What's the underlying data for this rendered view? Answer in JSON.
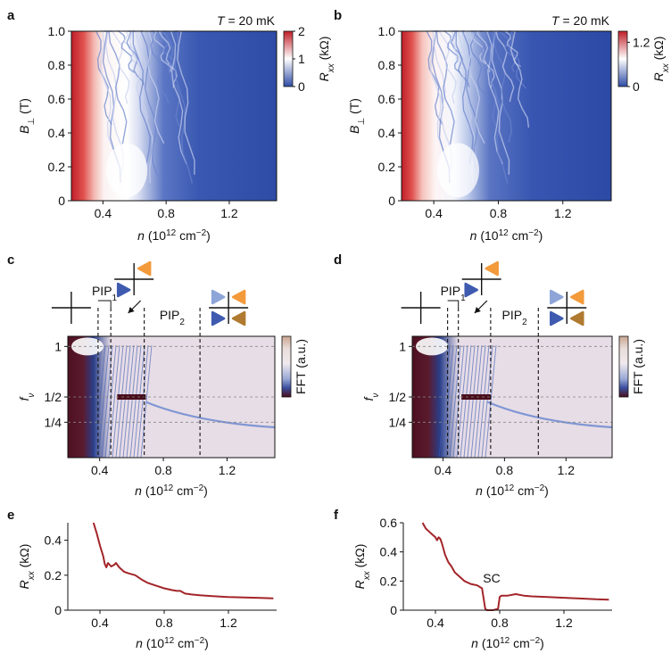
{
  "figure": {
    "panel_labels": [
      "a",
      "b",
      "c",
      "d",
      "e",
      "f"
    ],
    "colors": {
      "red": "#d8262f",
      "blue": "#2f4fa8",
      "dark_red_trace": "#a3252a",
      "fft_dark": "#4a0d1a",
      "fft_light": "#e7dde6",
      "tri_orange": "#f39a3b",
      "tri_blue": "#3f5bb0",
      "tri_lightblue": "#8ea5d8",
      "tri_brown": "#b07a30"
    },
    "icons": [
      "cross-icon",
      "cross-with-triangles-icon",
      "triangle-icon"
    ]
  },
  "chart_data": [
    {
      "panel": "a",
      "type": "heatmap",
      "title": "T = 20 mK",
      "xlabel": "n (10^12 cm^-2)",
      "xlabel_parts": {
        "n": "n",
        "units": "(10",
        "exp": "12",
        "unit2": " cm",
        "exp2": "−2",
        "close": ")"
      },
      "ylabel": "B⊥ (T)",
      "xlim": [
        0.2,
        1.5
      ],
      "ylim": [
        0,
        1.0
      ],
      "xticks": [
        "0.4",
        "0.8",
        "1.2"
      ],
      "xtick_values": [
        0.4,
        0.8,
        1.2
      ],
      "yticks": [
        "0",
        "0.2",
        "0.4",
        "0.6",
        "0.8",
        "1.0"
      ],
      "ytick_values": [
        0,
        0.2,
        0.4,
        0.6,
        0.8,
        1.0
      ],
      "colorbar": {
        "label": "Rxx (kΩ)",
        "ticks": [
          "2",
          "1",
          "0"
        ],
        "tick_values": [
          2,
          1,
          0
        ],
        "range": [
          0,
          2
        ]
      }
    },
    {
      "panel": "b",
      "type": "heatmap",
      "title": "T = 20 mK",
      "xlabel": "n (10^12 cm^-2)",
      "ylabel": "B⊥ (T)",
      "xlim": [
        0.2,
        1.5
      ],
      "ylim": [
        0,
        1.0
      ],
      "xticks": [
        "0.4",
        "0.8",
        "1.2"
      ],
      "xtick_values": [
        0.4,
        0.8,
        1.2
      ],
      "yticks": [
        "0",
        "0.2",
        "0.4",
        "0.6",
        "0.8",
        "1.0"
      ],
      "ytick_values": [
        0,
        0.2,
        0.4,
        0.6,
        0.8,
        1.0
      ],
      "colorbar": {
        "label": "Rxx (kΩ)",
        "ticks": [
          "1.2",
          "0"
        ],
        "tick_values": [
          1.2,
          0
        ],
        "range": [
          0,
          1.5
        ]
      }
    },
    {
      "panel": "c",
      "type": "heatmap",
      "xlabel": "n (10^12 cm^-2)",
      "ylabel": "fν",
      "xlim": [
        0.2,
        1.5
      ],
      "xticks": [
        "0.4",
        "0.8",
        "1.2"
      ],
      "xtick_values": [
        0.4,
        0.8,
        1.2
      ],
      "yticks": [
        "1",
        "1/2",
        "1/4"
      ],
      "ytick_values": [
        1,
        0.5,
        0.25
      ],
      "ylim": [
        -0.1,
        1.1
      ],
      "colorbar": {
        "label": "FFT (a.u.)"
      },
      "annotations": [
        "PIP1",
        "PIP2"
      ],
      "phase_boundaries_n": [
        0.39,
        0.47,
        0.68,
        1.03
      ],
      "bright_feature": {
        "n_range": [
          0.51,
          0.69
        ],
        "f": 0.5
      }
    },
    {
      "panel": "d",
      "type": "heatmap",
      "xlabel": "n (10^12 cm^-2)",
      "ylabel": "fν",
      "xlim": [
        0.2,
        1.5
      ],
      "xticks": [
        "0.4",
        "0.8",
        "1.2"
      ],
      "xtick_values": [
        0.4,
        0.8,
        1.2
      ],
      "yticks": [
        "1",
        "1/2",
        "1/4"
      ],
      "ytick_values": [
        1,
        0.5,
        0.25
      ],
      "ylim": [
        -0.1,
        1.1
      ],
      "colorbar": {
        "label": "FFT (a.u.)"
      },
      "annotations": [
        "PIP1",
        "PIP2"
      ],
      "phase_boundaries_n": [
        0.43,
        0.5,
        0.71,
        1.02
      ],
      "bright_feature": {
        "n_range": [
          0.52,
          0.71
        ],
        "f": 0.5
      }
    },
    {
      "panel": "e",
      "type": "line",
      "xlabel": "n (10^12 cm^-2)",
      "ylabel": "Rxx (kΩ)",
      "xlim": [
        0.2,
        1.5
      ],
      "ylim": [
        0,
        0.5
      ],
      "xticks": [
        "0.4",
        "0.8",
        "1.2"
      ],
      "xtick_values": [
        0.4,
        0.8,
        1.2
      ],
      "yticks": [
        "0",
        "0.2",
        "0.4"
      ],
      "ytick_values": [
        0,
        0.2,
        0.4
      ],
      "series": [
        {
          "name": "Rxx",
          "x": [
            0.36,
            0.38,
            0.4,
            0.42,
            0.43,
            0.44,
            0.45,
            0.47,
            0.49,
            0.5,
            0.52,
            0.55,
            0.58,
            0.62,
            0.66,
            0.7,
            0.75,
            0.8,
            0.85,
            0.88,
            0.9,
            0.93,
            0.97,
            1.02,
            1.1,
            1.2,
            1.3,
            1.4,
            1.48
          ],
          "y": [
            0.5,
            0.44,
            0.37,
            0.31,
            0.265,
            0.245,
            0.27,
            0.25,
            0.26,
            0.27,
            0.245,
            0.22,
            0.21,
            0.2,
            0.175,
            0.155,
            0.14,
            0.125,
            0.115,
            0.11,
            0.11,
            0.095,
            0.09,
            0.085,
            0.08,
            0.075,
            0.073,
            0.07,
            0.068
          ]
        }
      ]
    },
    {
      "panel": "f",
      "type": "line",
      "xlabel": "n (10^12 cm^-2)",
      "ylabel": "Rxx (kΩ)",
      "xlim": [
        0.2,
        1.5
      ],
      "ylim": [
        0,
        0.6
      ],
      "xticks": [
        "0.4",
        "0.8",
        "1.2"
      ],
      "xtick_values": [
        0.4,
        0.8,
        1.2
      ],
      "yticks": [
        "0",
        "0.2",
        "0.4",
        "0.6"
      ],
      "ytick_values": [
        0,
        0.2,
        0.4,
        0.6
      ],
      "annotations": [
        "SC"
      ],
      "series": [
        {
          "name": "Rxx",
          "x": [
            0.32,
            0.34,
            0.36,
            0.38,
            0.4,
            0.41,
            0.42,
            0.43,
            0.44,
            0.46,
            0.48,
            0.5,
            0.52,
            0.55,
            0.58,
            0.62,
            0.66,
            0.69,
            0.7,
            0.71,
            0.72,
            0.76,
            0.79,
            0.8,
            0.81,
            0.85,
            0.9,
            0.95,
            1.0,
            1.1,
            1.2,
            1.3,
            1.4,
            1.48
          ],
          "y": [
            0.6,
            0.56,
            0.54,
            0.52,
            0.5,
            0.48,
            0.5,
            0.49,
            0.46,
            0.38,
            0.33,
            0.3,
            0.26,
            0.23,
            0.2,
            0.18,
            0.17,
            0.15,
            0.08,
            0.01,
            0.0,
            0.0,
            0.01,
            0.09,
            0.1,
            0.1,
            0.11,
            0.1,
            0.095,
            0.09,
            0.085,
            0.08,
            0.075,
            0.072
          ]
        }
      ]
    }
  ]
}
